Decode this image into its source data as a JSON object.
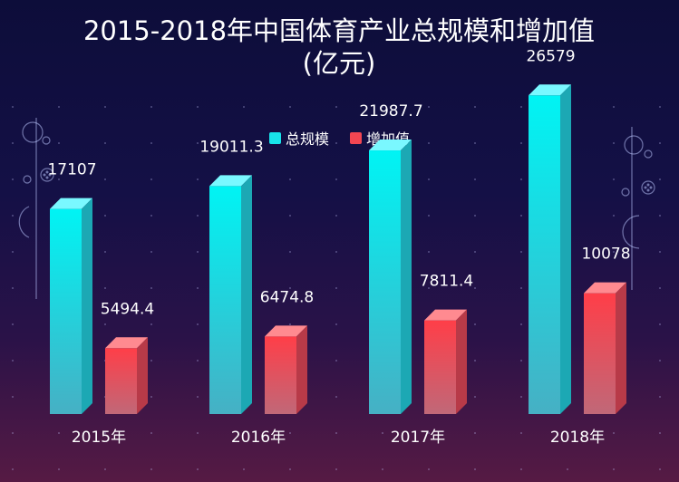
{
  "chart_data": {
    "type": "bar",
    "title": "2015-2018年中国体育产业总规模和增加值",
    "subtitle": "(亿元)",
    "categories": [
      "2015年",
      "2016年",
      "2017年",
      "2018年"
    ],
    "series": [
      {
        "name": "总规模",
        "values": [
          17107,
          19011.3,
          21987.7,
          26579
        ],
        "labels": [
          "17107",
          "19011.3",
          "21987.7",
          "26579"
        ]
      },
      {
        "name": "增加值",
        "values": [
          5494.4,
          6474.8,
          7811.4,
          10078
        ],
        "labels": [
          "5494.4",
          "6474.8",
          "7811.4",
          "10078"
        ]
      }
    ],
    "ylim": [
      0,
      30000
    ],
    "grid": false,
    "legend_position": "top-center",
    "colors": {
      "series_0_top": "#00f0f0",
      "series_0_bottom": "#3ab8c8",
      "series_1_top": "#ff4650",
      "series_1_bottom": "#c85a6a"
    }
  }
}
